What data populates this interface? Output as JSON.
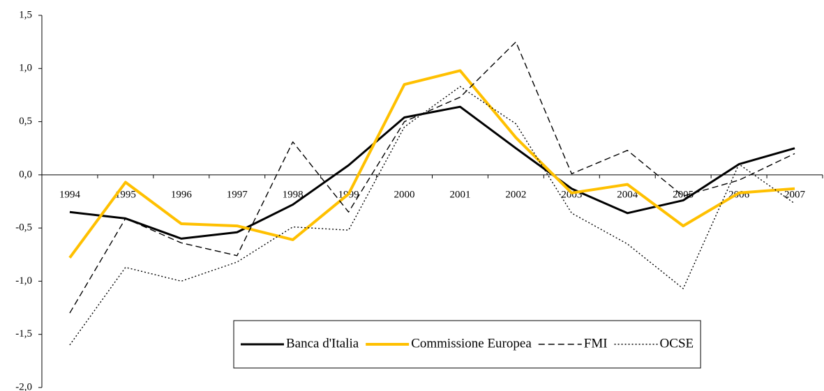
{
  "chart_data": {
    "type": "line",
    "categories": [
      "1994",
      "1995",
      "1996",
      "1997",
      "1998",
      "1999",
      "2000",
      "2001",
      "2002",
      "2003",
      "2004",
      "2005",
      "2006",
      "2007"
    ],
    "series": [
      {
        "name": "Banca d'Italia",
        "color": "#000000",
        "dash": "solid",
        "values": [
          -0.35,
          -0.41,
          -0.6,
          -0.54,
          -0.28,
          0.09,
          0.54,
          0.64,
          0.25,
          -0.13,
          -0.36,
          -0.24,
          0.1,
          0.25
        ]
      },
      {
        "name": "Commissione Europea",
        "color": "#ffc000",
        "dash": "solid",
        "values": [
          -0.78,
          -0.07,
          -0.46,
          -0.48,
          -0.61,
          -0.18,
          0.85,
          0.98,
          0.35,
          -0.17,
          -0.09,
          -0.48,
          -0.17,
          -0.13
        ]
      },
      {
        "name": "FMI",
        "color": "#000000",
        "dash": "dashed",
        "values": [
          -1.3,
          -0.41,
          -0.64,
          -0.76,
          0.31,
          -0.35,
          0.5,
          0.73,
          1.25,
          0.01,
          0.23,
          -0.2,
          -0.05,
          0.2
        ]
      },
      {
        "name": "OCSE",
        "color": "#000000",
        "dash": "dotted",
        "values": [
          -1.6,
          -0.87,
          -1.0,
          -0.82,
          -0.49,
          -0.52,
          0.45,
          0.83,
          0.48,
          -0.36,
          -0.65,
          -1.07,
          0.1,
          -0.27
        ]
      }
    ],
    "ylim": [
      -2.0,
      1.5
    ],
    "yticks": [
      {
        "value": -2.0,
        "label": "-2,0"
      },
      {
        "value": -1.5,
        "label": "-1,5"
      },
      {
        "value": -1.0,
        "label": "-1,0"
      },
      {
        "value": -0.5,
        "label": "-0,5"
      },
      {
        "value": 0.0,
        "label": "0,0"
      },
      {
        "value": 0.5,
        "label": "0,5"
      },
      {
        "value": 1.0,
        "label": "1,0"
      },
      {
        "value": 1.5,
        "label": "1,5"
      }
    ],
    "legend": "bottom-right"
  }
}
